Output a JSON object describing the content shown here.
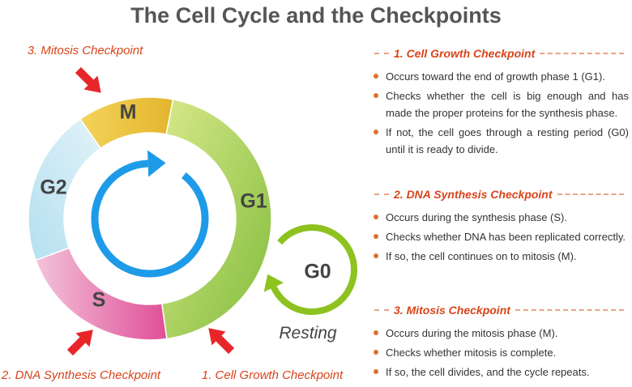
{
  "title": "The Cell Cycle and the Checkpoints",
  "phases": [
    "M",
    "G1",
    "S",
    "G2",
    "G0"
  ],
  "resting": "Resting",
  "checkpoint_labels": [
    "3. Mitosis Checkpoint",
    "2. DNA Synthesis Checkpoint",
    "1. Cell Growth Checkpoint"
  ],
  "sections": [
    {
      "title": "1. Cell Growth Checkpoint",
      "bullets": [
        "Occurs toward the end of growth phase 1 (G1).",
        "Checks whether the cell is big enough and has made the proper proteins for the synthesis phase.",
        "If not, the cell goes through a resting period (G0) until it is ready to divide."
      ]
    },
    {
      "title": "2. DNA Synthesis Checkpoint",
      "bullets": [
        "Occurs during the synthesis phase (S).",
        "Checks whether DNA has been replicated correctly.",
        "If so, the cell continues on to mitosis (M)."
      ]
    },
    {
      "title": "3. Mitosis Checkpoint",
      "bullets": [
        "Occurs during the mitosis phase (M).",
        "Checks whether mitosis is complete.",
        "If so, the cell divides, and the cycle repeats."
      ]
    }
  ]
}
